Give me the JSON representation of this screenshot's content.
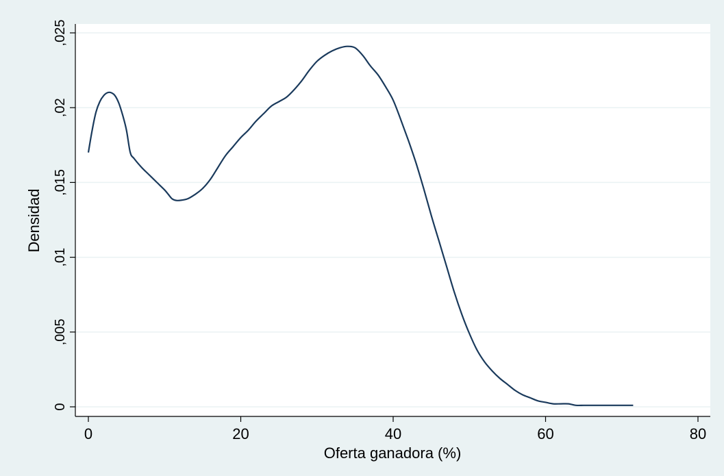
{
  "chart_data": {
    "type": "line",
    "xlabel": "Oferta ganadora (%)",
    "ylabel": "Densidad",
    "xlim": [
      0,
      80
    ],
    "ylim": [
      0,
      0.025
    ],
    "x_ticks": [
      {
        "value": 0,
        "label": "0"
      },
      {
        "value": 20,
        "label": "20"
      },
      {
        "value": 40,
        "label": "40"
      },
      {
        "value": 60,
        "label": "60"
      },
      {
        "value": 80,
        "label": "80"
      }
    ],
    "y_ticks": [
      {
        "value": 0,
        "label": "0"
      },
      {
        "value": 0.005,
        "label": ",005"
      },
      {
        "value": 0.01,
        "label": ",01"
      },
      {
        "value": 0.015,
        "label": ",015"
      },
      {
        "value": 0.02,
        "label": ",02"
      },
      {
        "value": 0.025,
        "label": ",025"
      }
    ],
    "grid": "horizontal",
    "colors": {
      "line": "#1a3a5c",
      "plot_bg": "#ffffff",
      "outer_bg": "#eaf2f3",
      "grid": "#eaf2f3"
    },
    "series": [
      {
        "x": [
          0,
          0.5,
          1,
          1.5,
          2,
          2.5,
          3,
          3.5,
          4,
          4.5,
          5,
          5.5,
          6,
          7,
          8,
          9,
          10,
          10.5,
          11,
          11.5,
          12,
          13,
          14,
          15,
          16,
          17,
          18,
          19,
          20,
          21,
          22,
          23,
          24,
          25,
          26,
          27,
          28,
          29,
          30,
          31,
          32,
          33,
          34,
          35,
          36,
          37,
          38,
          39,
          40,
          41,
          42,
          43,
          44,
          45,
          46,
          47,
          48,
          49,
          50,
          51,
          52,
          53,
          54,
          55,
          56,
          57,
          58,
          59,
          60,
          61,
          62,
          63,
          64,
          65,
          66,
          67,
          68,
          69,
          70,
          71.5
        ],
        "y": [
          0.017,
          0.0185,
          0.0197,
          0.0204,
          0.0208,
          0.021,
          0.021,
          0.0208,
          0.0203,
          0.0195,
          0.0185,
          0.017,
          0.0166,
          0.016,
          0.0155,
          0.015,
          0.0145,
          0.0142,
          0.0139,
          0.0138,
          0.0138,
          0.0139,
          0.0142,
          0.0146,
          0.0152,
          0.016,
          0.0168,
          0.0174,
          0.018,
          0.0185,
          0.0191,
          0.0196,
          0.0201,
          0.0204,
          0.0207,
          0.0212,
          0.0218,
          0.0225,
          0.0231,
          0.0235,
          0.0238,
          0.024,
          0.0241,
          0.024,
          0.0235,
          0.0228,
          0.0222,
          0.0214,
          0.0205,
          0.0192,
          0.0178,
          0.0163,
          0.0146,
          0.0128,
          0.0111,
          0.0094,
          0.0077,
          0.0062,
          0.0049,
          0.0038,
          0.003,
          0.0024,
          0.0019,
          0.0015,
          0.0011,
          0.0008,
          0.0006,
          0.0004,
          0.0003,
          0.0002,
          0.0002,
          0.0002,
          0.0001,
          0.0001,
          0.0001,
          0.0001,
          0.0001,
          0.0001,
          0.0001,
          0.0001
        ]
      }
    ]
  }
}
